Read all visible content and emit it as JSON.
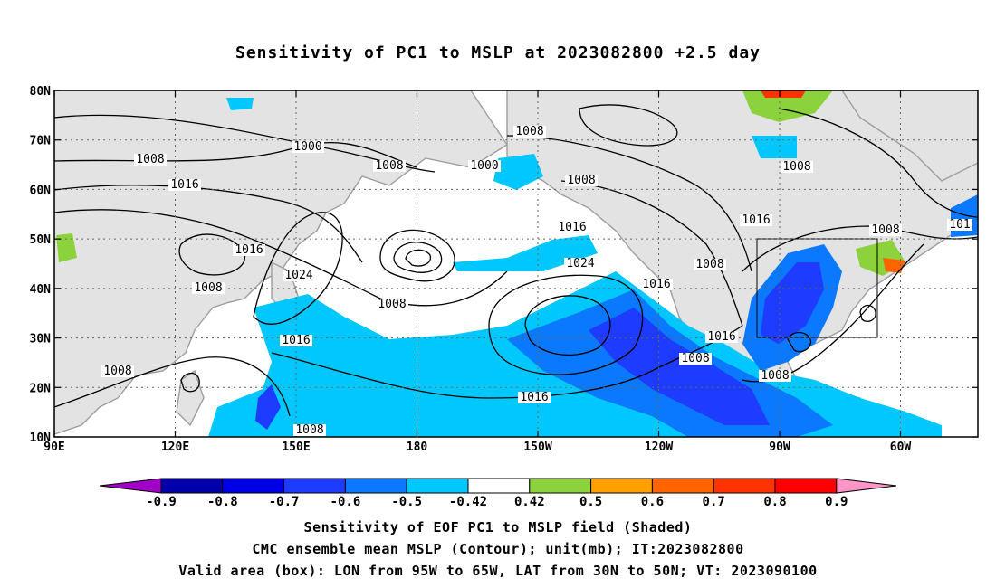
{
  "title": "Sensitivity of PC1 to MSLP at 2023082800 +2.5 day",
  "map": {
    "lat_labels": [
      "80N",
      "70N",
      "60N",
      "50N",
      "40N",
      "30N",
      "20N",
      "10N"
    ],
    "lon_labels": [
      "90E",
      "120E",
      "150E",
      "180",
      "150W",
      "120W",
      "90W",
      "60W"
    ],
    "contour_labels": [
      "1000",
      "1008",
      "1008",
      "1016",
      "1008",
      "1000",
      "1008",
      "1008",
      "1016",
      "1016",
      "1024",
      "1008",
      "1016",
      "1024",
      "1008",
      "1016",
      "1008",
      "1016",
      "1016",
      "1008",
      "1008",
      "1008",
      "1008",
      "1008",
      "1016",
      "101"
    ],
    "valid_box": {
      "lon_range": [
        "95W",
        "65W"
      ],
      "lat_range": [
        "30N",
        "50N"
      ]
    },
    "land_color": "#e3e3e3",
    "coast_color": "#9e9e9e",
    "contour_color": "#000000"
  },
  "colorbar": {
    "labels": [
      "-0.9",
      "-0.8",
      "-0.7",
      "-0.6",
      "-0.5",
      "-0.42",
      "0.42",
      "0.5",
      "0.6",
      "0.7",
      "0.8",
      "0.9"
    ],
    "colors": [
      "#a000c8",
      "#0000aa",
      "#0000e6",
      "#1e3cff",
      "#0a78ff",
      "#00c8ff",
      "#ffffff",
      "#8cd23c",
      "#ffa000",
      "#ff6400",
      "#ff3200",
      "#ff0000",
      "#ff96c8"
    ]
  },
  "captions": [
    "Sensitivity of EOF PC1 to MSLP field (Shaded)",
    "CMC ensemble mean MSLP (Contour); unit(mb); IT:2023082800",
    "Valid area (box): LON from 95W to 65W, LAT from 30N to 50N; VT: 2023090100"
  ]
}
